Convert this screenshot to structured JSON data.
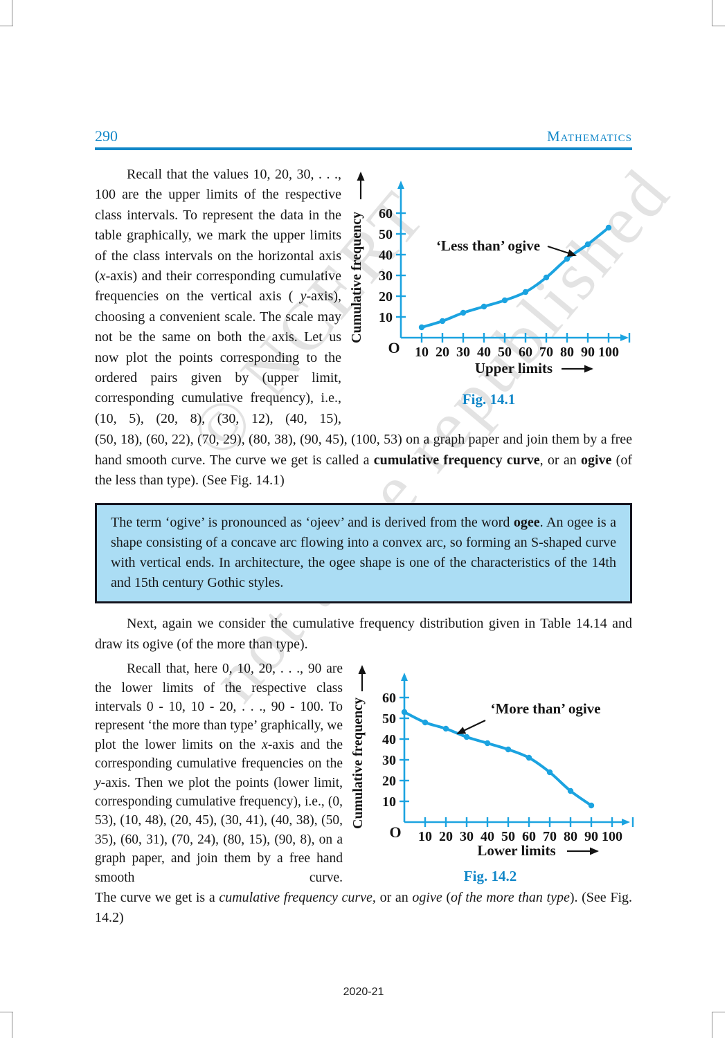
{
  "page": {
    "number": "290",
    "header_title": "Mathematics",
    "footer": "2020-21"
  },
  "watermark": {
    "line1": "© NCERT",
    "line2": "not to be republished"
  },
  "colors": {
    "header_blue": "#1287c8",
    "curve_blue": "#1ba3e0",
    "caption_blue": "#1287c8",
    "note_box_bg": "#abddf4",
    "note_box_border": "#14141e",
    "text_black": "#161616"
  },
  "paragraphs": {
    "p1": {
      "runs": [
        {
          "t": "Recall that the values 10, 20, 30, . . ., 100 are the upper limits of the respective class intervals. To represent the data in the table graphically, we mark the upper limits of the class intervals on the horizontal axis ("
        },
        {
          "t": "x",
          "i": true
        },
        {
          "t": "-axis) and their corresponding cumulative frequencies on the vertical axis ( "
        },
        {
          "t": "y",
          "i": true
        },
        {
          "t": "-axis), choosing a convenient scale. The scale may not be the same on both the axis. Let us now plot the points corresponding to the ordered pairs given by (upper limit, corresponding cumulative frequency), i.e., (10, 5), (20, 8), (30, 12), (40, 15),"
        }
      ]
    },
    "p2": {
      "runs": [
        {
          "t": "(50, 18), (60, 22), (70, 29), (80, 38), (90, 45), (100, 53) on a graph paper and join them by a free hand smooth curve. The curve we get is called a "
        },
        {
          "t": "cumulative frequency curve",
          "b": true
        },
        {
          "t": ", or an "
        },
        {
          "t": "ogive",
          "b": true
        },
        {
          "t": " (of the less than type). (See Fig. 14.1)"
        }
      ]
    },
    "note": {
      "runs": [
        {
          "t": "The term ‘ogive’ is pronounced as ‘ojeev’ and is derived from the word "
        },
        {
          "t": "ogee",
          "b": true
        },
        {
          "t": ". An ogee is a shape consisting of a concave arc flowing into a convex arc, so forming an S-shaped curve with vertical ends. In architecture, the ogee shape is one of the characteristics of the 14th and 15th century Gothic styles."
        }
      ]
    },
    "p3": {
      "runs": [
        {
          "t": "Next, again we consider the cumulative frequency distribution given in Table 14.14 and draw its ogive (of the more than type)."
        }
      ]
    },
    "p4": {
      "runs": [
        {
          "t": "Recall that, here 0, 10, 20, . . ., 90 are the lower limits of the respective class intervals 0 - 10, 10 - 20, . . ., 90 - 100. To represent ‘the more than type’ graphically, we plot the lower limits on the "
        },
        {
          "t": "x",
          "i": true
        },
        {
          "t": "-axis and the corresponding cumulative frequencies on the "
        },
        {
          "t": "y",
          "i": true
        },
        {
          "t": "-axis. Then we plot the points (lower limit, corresponding cumulative frequency), i.e., (0, 53), (10, 48), (20, 45), (30, 41), (40, 38), (50, 35), (60, 31), (70, 24), (80, 15), (90, 8), on a graph paper, and join them by a free hand smooth curve."
        }
      ]
    },
    "p5": {
      "runs": [
        {
          "t": "The curve we get is a "
        },
        {
          "t": "cumulative frequency curve,",
          "i": true
        },
        {
          "t": " or an "
        },
        {
          "t": "ogive",
          "i": true
        },
        {
          "t": " ("
        },
        {
          "t": "of the more than type",
          "i": true
        },
        {
          "t": "). (See Fig. 14.2)"
        }
      ]
    }
  },
  "chart_data": [
    {
      "type": "line",
      "caption": "Fig. 14.1",
      "annotation": "‘Less than’ ogive",
      "xlabel": "Upper limits",
      "ylabel": "Cumulative frequency",
      "origin_label": "O",
      "x": [
        10,
        20,
        30,
        40,
        50,
        60,
        70,
        80,
        90,
        100
      ],
      "y": [
        5,
        8,
        12,
        15,
        18,
        22,
        29,
        38,
        45,
        53
      ],
      "x_ticks": [
        10,
        20,
        30,
        40,
        50,
        60,
        70,
        80,
        90,
        100
      ],
      "y_ticks": [
        10,
        20,
        30,
        40,
        50,
        60
      ],
      "xlim": [
        0,
        110
      ],
      "ylim": [
        0,
        70
      ],
      "grid": false,
      "line_color": "#1ba3e0"
    },
    {
      "type": "line",
      "caption": "Fig. 14.2",
      "annotation": "‘More than’ ogive",
      "xlabel": "Lower limits",
      "ylabel": "Cumulative frequency",
      "origin_label": "O",
      "x": [
        0,
        10,
        20,
        30,
        40,
        50,
        60,
        70,
        80,
        90
      ],
      "y": [
        53,
        48,
        45,
        41,
        38,
        35,
        31,
        24,
        15,
        8
      ],
      "x_ticks": [
        10,
        20,
        30,
        40,
        50,
        60,
        70,
        80,
        90,
        100
      ],
      "y_ticks": [
        10,
        20,
        30,
        40,
        50,
        60
      ],
      "xlim": [
        0,
        110
      ],
      "ylim": [
        0,
        70
      ],
      "grid": false,
      "line_color": "#1ba3e0"
    }
  ]
}
